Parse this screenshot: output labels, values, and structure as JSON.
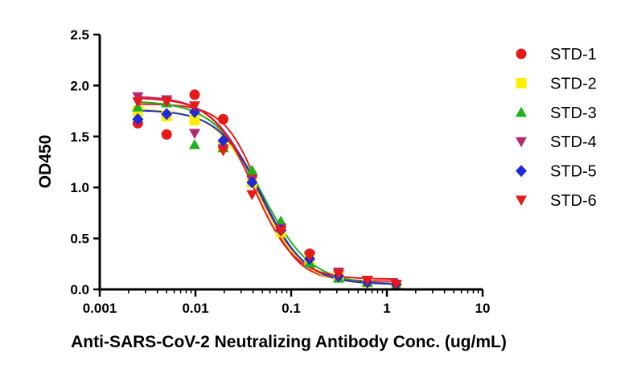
{
  "chart_data": {
    "type": "scatter",
    "title": "",
    "xlabel": "Anti-SARS-CoV-2 Neutralizing Antibody Conc. (ug/mL)",
    "ylabel": "OD450",
    "xscale": "log",
    "xlim": [
      0.001,
      10
    ],
    "ylim": [
      0,
      2.5
    ],
    "x_ticks": [
      0.001,
      0.01,
      0.1,
      1,
      10
    ],
    "x_tick_labels": [
      "0.001",
      "0.01",
      "0.1",
      "1",
      "10"
    ],
    "y_ticks": [
      0,
      0.5,
      1.0,
      1.5,
      2.0,
      2.5
    ],
    "y_tick_labels": [
      "0.0",
      "0.5",
      "1.0",
      "1.5",
      "2.0",
      "2.5"
    ],
    "grid": false,
    "legend_position": "right",
    "fitted_curves": "four-parameter logistic",
    "series": [
      {
        "name": "STD-1",
        "color": "#e8191b",
        "marker": "circle",
        "x": [
          0.0025,
          0.005,
          0.0098,
          0.0195,
          0.039,
          0.078,
          0.156,
          0.3125,
          0.625,
          1.25
        ],
        "y": [
          1.63,
          1.52,
          1.91,
          1.67,
          1.12,
          0.62,
          0.35,
          0.15,
          0.08,
          0.05
        ],
        "fit": {
          "bottom": 0.08,
          "top": 1.82,
          "ic50": 0.048,
          "hill": 2.3
        }
      },
      {
        "name": "STD-2",
        "color": "#ffee00",
        "marker": "square",
        "x": [
          0.0025,
          0.005,
          0.0098,
          0.0195,
          0.039,
          0.078,
          0.156,
          0.3125,
          0.625,
          1.25
        ],
        "y": [
          1.75,
          1.7,
          1.66,
          1.4,
          1.05,
          0.56,
          0.29,
          0.14,
          0.07,
          0.04
        ],
        "fit": {
          "bottom": 0.05,
          "top": 1.77,
          "ic50": 0.047,
          "hill": 1.9
        }
      },
      {
        "name": "STD-3",
        "color": "#1fb21f",
        "marker": "triangle-up",
        "x": [
          0.0025,
          0.005,
          0.0098,
          0.0195,
          0.039,
          0.078,
          0.156,
          0.3125,
          0.625,
          1.25
        ],
        "y": [
          1.79,
          1.83,
          1.42,
          1.39,
          1.17,
          0.67,
          0.26,
          0.11,
          0.07,
          0.04
        ],
        "fit": {
          "bottom": 0.05,
          "top": 1.85,
          "ic50": 0.049,
          "hill": 1.7
        }
      },
      {
        "name": "STD-4",
        "color": "#b5286e",
        "marker": "triangle-down",
        "x": [
          0.0025,
          0.005,
          0.0098,
          0.0195,
          0.039,
          0.078,
          0.156,
          0.3125,
          0.625,
          1.25
        ],
        "y": [
          1.89,
          1.86,
          1.53,
          1.38,
          1.07,
          0.6,
          0.32,
          0.17,
          0.08,
          0.04
        ],
        "fit": {
          "bottom": 0.05,
          "top": 1.9,
          "ic50": 0.045,
          "hill": 1.8
        }
      },
      {
        "name": "STD-5",
        "color": "#1f2bd6",
        "marker": "diamond",
        "x": [
          0.0025,
          0.005,
          0.0098,
          0.0195,
          0.039,
          0.078,
          0.156,
          0.3125,
          0.625,
          1.25
        ],
        "y": [
          1.67,
          1.72,
          1.74,
          1.46,
          1.05,
          0.58,
          0.3,
          0.13,
          0.07,
          0.05
        ],
        "fit": {
          "bottom": 0.05,
          "top": 1.76,
          "ic50": 0.05,
          "hill": 1.9
        }
      },
      {
        "name": "STD-6",
        "color": "#e8191b",
        "marker": "triangle-down",
        "x": [
          0.0025,
          0.005,
          0.0098,
          0.0195,
          0.039,
          0.078,
          0.156,
          0.3125,
          0.625,
          1.25
        ],
        "y": [
          1.84,
          1.84,
          1.8,
          1.36,
          0.93,
          0.57,
          0.33,
          0.15,
          0.09,
          0.05
        ],
        "fit": {
          "bottom": 0.1,
          "top": 1.88,
          "ic50": 0.041,
          "hill": 2.0
        }
      }
    ]
  }
}
